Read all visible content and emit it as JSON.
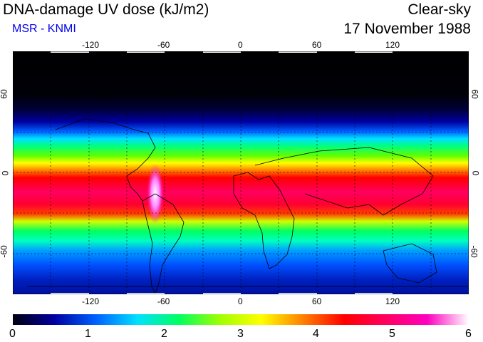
{
  "header": {
    "title": "DNA-damage UV dose (kJ/m2)",
    "source": "MSR - KNMI",
    "sky_condition": "Clear-sky",
    "date": "17 November 1988"
  },
  "map": {
    "projection": "equirectangular",
    "lon_ticks": [
      "-120",
      "-60",
      "0",
      "60",
      "120"
    ],
    "lat_ticks_left": [
      "60",
      "0",
      "-60"
    ],
    "lat_ticks_right": [
      "60",
      "0",
      "-60"
    ],
    "gridlines": "dashed every 30 degrees"
  },
  "colorbar": {
    "min": 0,
    "max": 6,
    "labels": [
      "0",
      "1",
      "2",
      "3",
      "4",
      "5",
      "6"
    ],
    "colors": [
      "#000010",
      "#0000a0",
      "#0060ff",
      "#00e0ff",
      "#00ff60",
      "#a0ff00",
      "#ffff00",
      "#ff8000",
      "#ff0000",
      "#ff0060",
      "#ff00c0",
      "#ffffff"
    ]
  }
}
